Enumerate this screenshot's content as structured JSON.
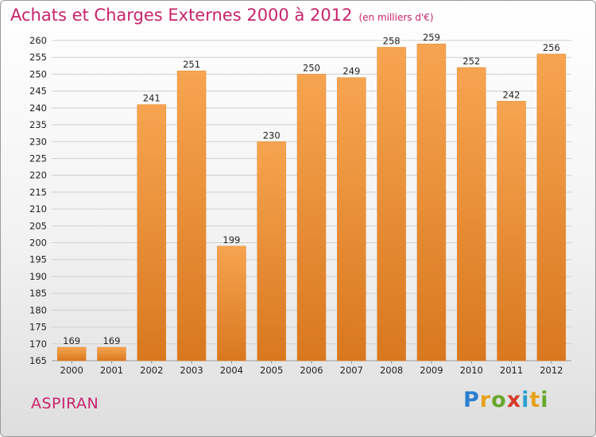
{
  "chart_data": {
    "type": "bar",
    "title": "Achats et Charges Externes 2000 à 2012",
    "unit_note": "(en milliers d'€)",
    "categories": [
      "2000",
      "2001",
      "2002",
      "2003",
      "2004",
      "2005",
      "2006",
      "2007",
      "2008",
      "2009",
      "2010",
      "2011",
      "2012"
    ],
    "values": [
      169,
      169,
      241,
      251,
      199,
      230,
      250,
      249,
      258,
      259,
      252,
      242,
      256
    ],
    "ylim": [
      165,
      260
    ],
    "ytick_step": 5,
    "grid": true,
    "bar_color": "#f39a3c",
    "bar_color_dark": "#d8781f",
    "title_color": "#c8236c"
  },
  "footer": {
    "commune": "ASPIRAN"
  },
  "brand": {
    "letters": [
      "P",
      "r",
      "o",
      "x",
      "i",
      "t",
      "i"
    ],
    "colors": [
      "#2b7fd0",
      "#e6a11a",
      "#6aa82d",
      "#d93a2b",
      "#2b9fd0",
      "#e6a11a",
      "#6aa82d"
    ]
  }
}
